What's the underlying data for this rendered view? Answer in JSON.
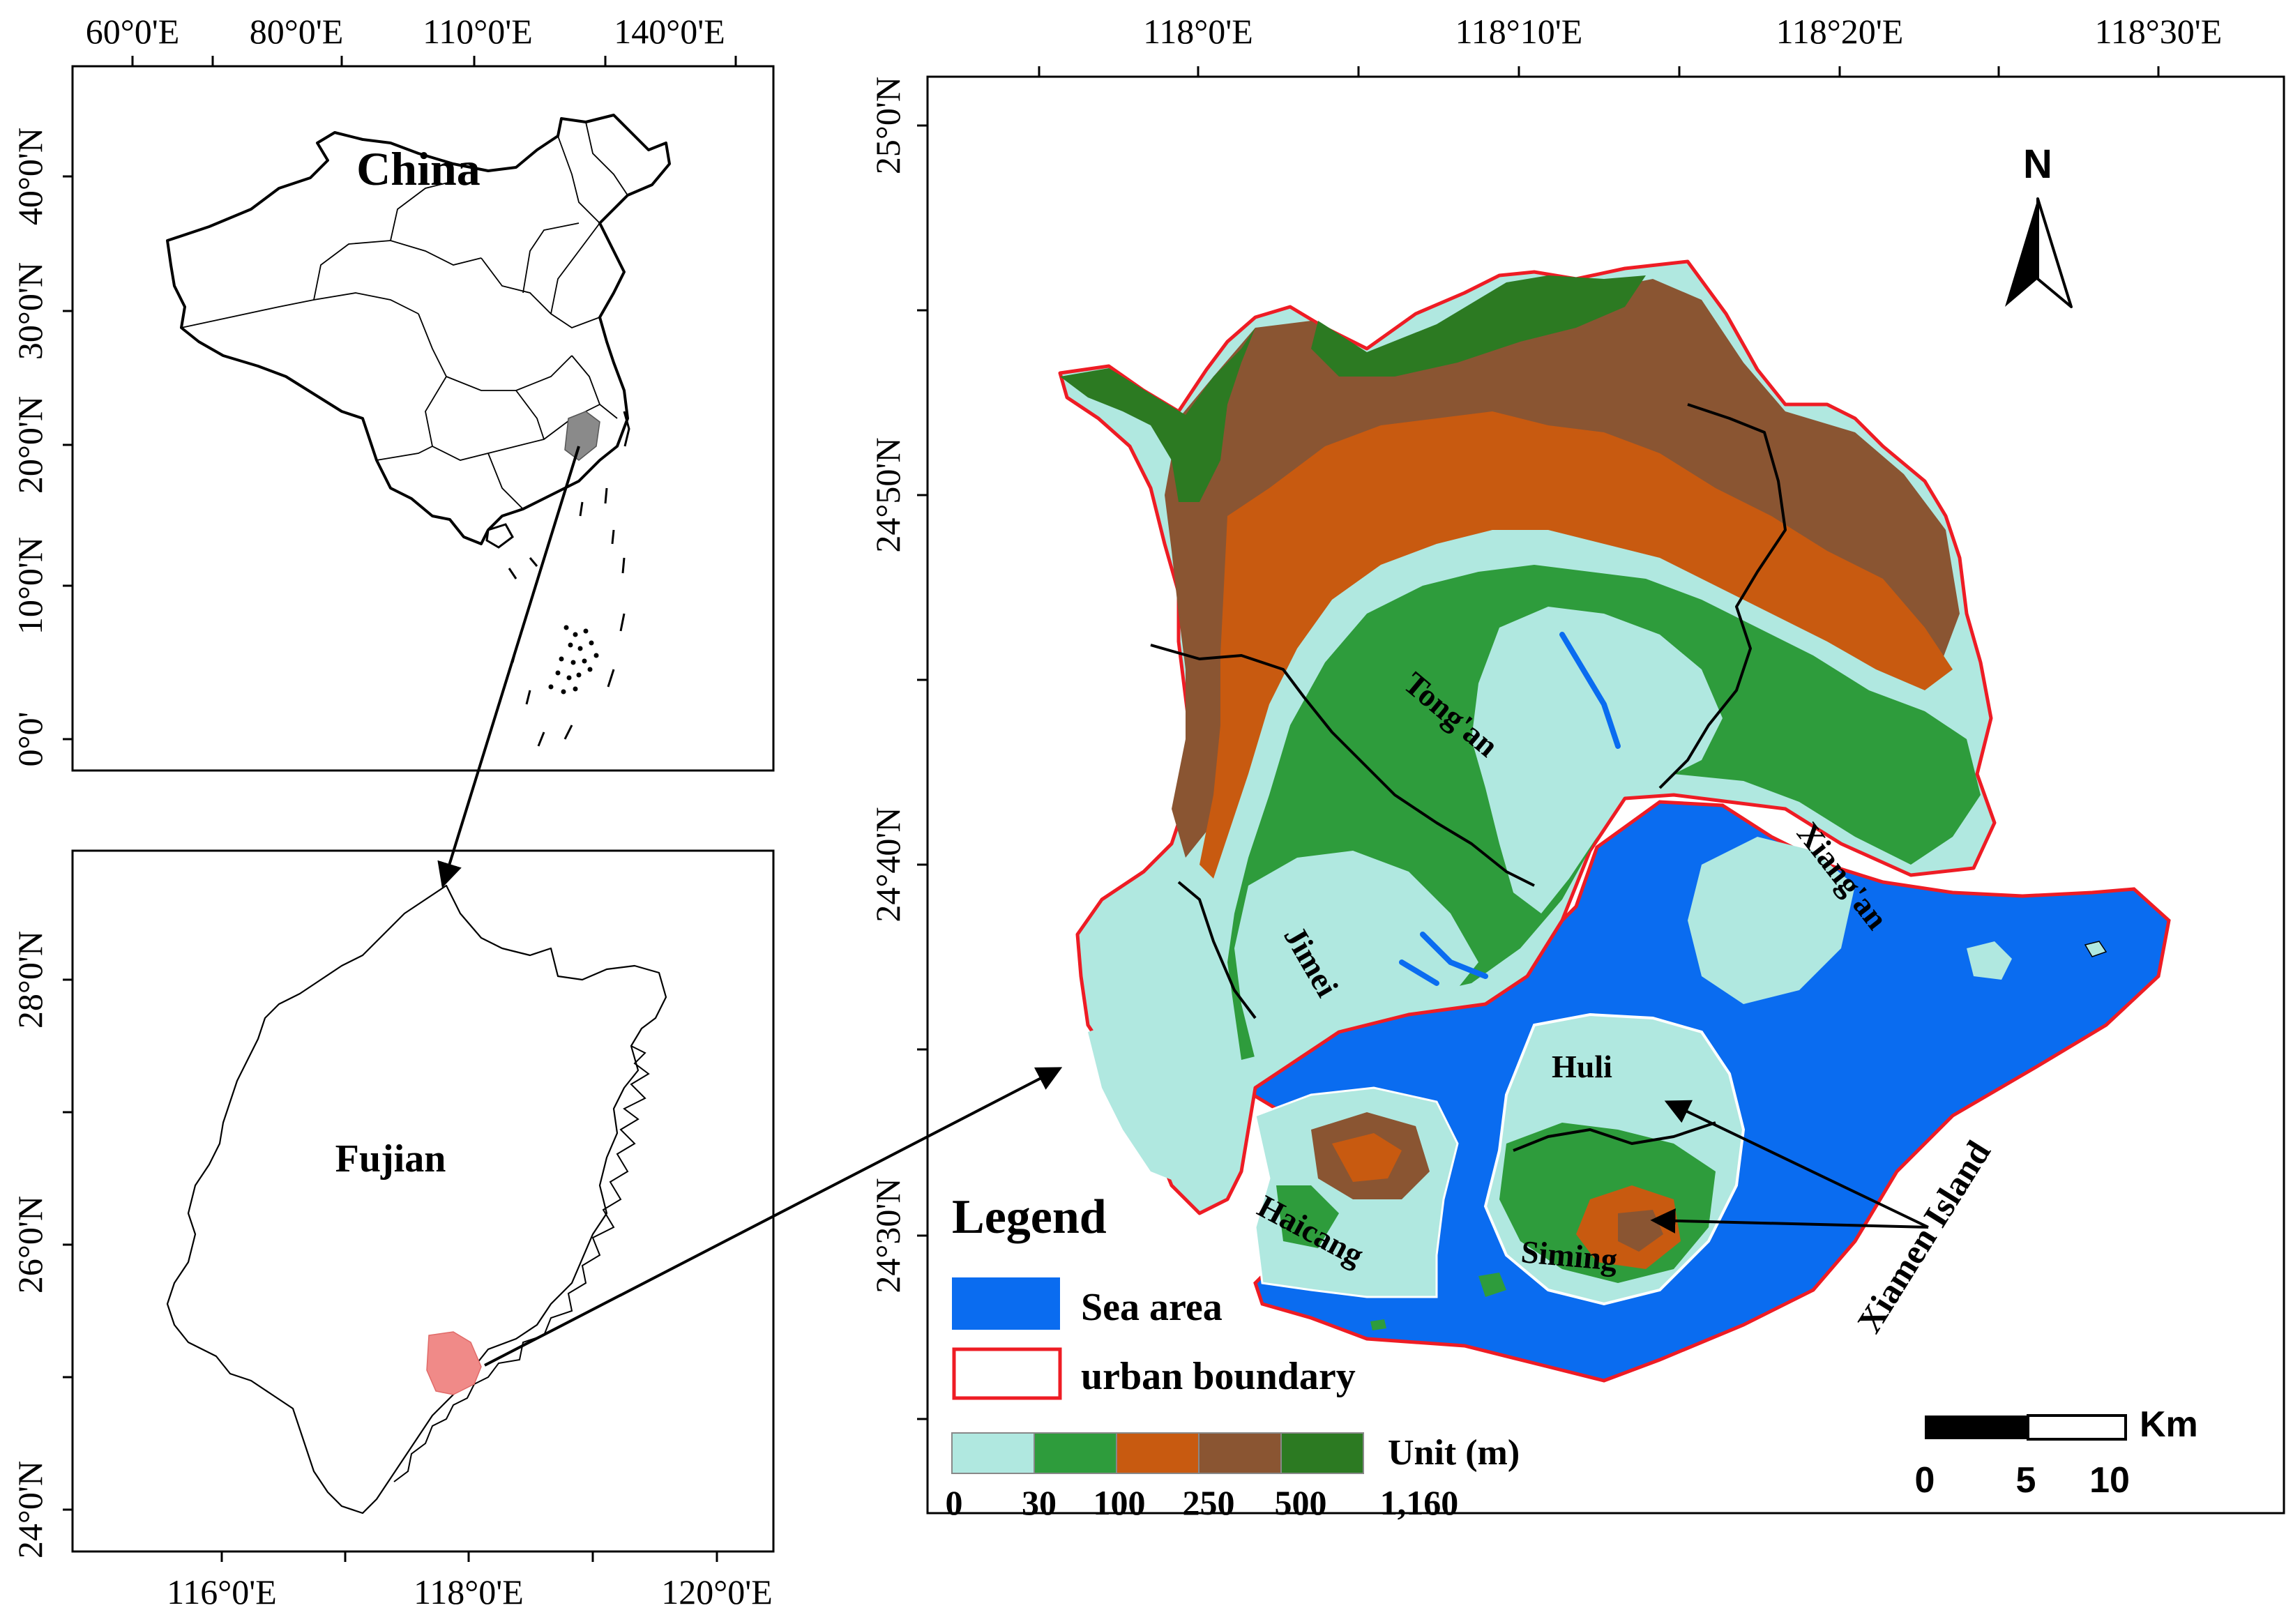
{
  "china_panel": {
    "title": "China",
    "lon_ticks": [
      "60°0'E",
      "80°0'E",
      "110°0'E",
      "140°0'E"
    ],
    "lat_ticks": [
      "40°0'N",
      "30°0'N",
      "20°0'N",
      "10°0'N",
      "0°0'"
    ]
  },
  "fujian_panel": {
    "title": "Fujian",
    "lon_ticks": [
      "116°0'E",
      "118°0'E",
      "120°0'E"
    ],
    "lat_ticks": [
      "28°0'N",
      "26°0'N",
      "24°0'N"
    ]
  },
  "xiamen_panel": {
    "lon_ticks": [
      "118°0'E",
      "118°10'E",
      "118°20'E",
      "118°30'E"
    ],
    "lat_ticks": [
      "25°0'N",
      "24°50'N",
      "24°40'N",
      "24°30'N"
    ],
    "districts": [
      "Tong'an",
      "Xiang'an",
      "Jimei",
      "Huli",
      "Haicang",
      "Siming"
    ],
    "island_label": "Xiamen Island",
    "north": "N",
    "scale": {
      "unit": "Km",
      "labels": [
        "0",
        "5",
        "10"
      ]
    },
    "legend": {
      "title": "Legend",
      "sea_label": "Sea area",
      "boundary_label": "urban boundary",
      "unit_label": "Unit (m)",
      "elevation_breaks": [
        "0",
        "30",
        "100",
        "250",
        "500",
        "1,160"
      ],
      "colors": {
        "sea": "#0a6cf0",
        "boundary": "#ee1c24",
        "elev_0_30": "#b0e8e0",
        "elev_30_100": "#2e9c3c",
        "elev_100_250": "#c85a10",
        "elev_250_500": "#8a5532",
        "elev_500_1160": "#2c7a22",
        "fujian_highlight": "#f08a88",
        "china_highlight": "#8a8a8a"
      }
    }
  }
}
